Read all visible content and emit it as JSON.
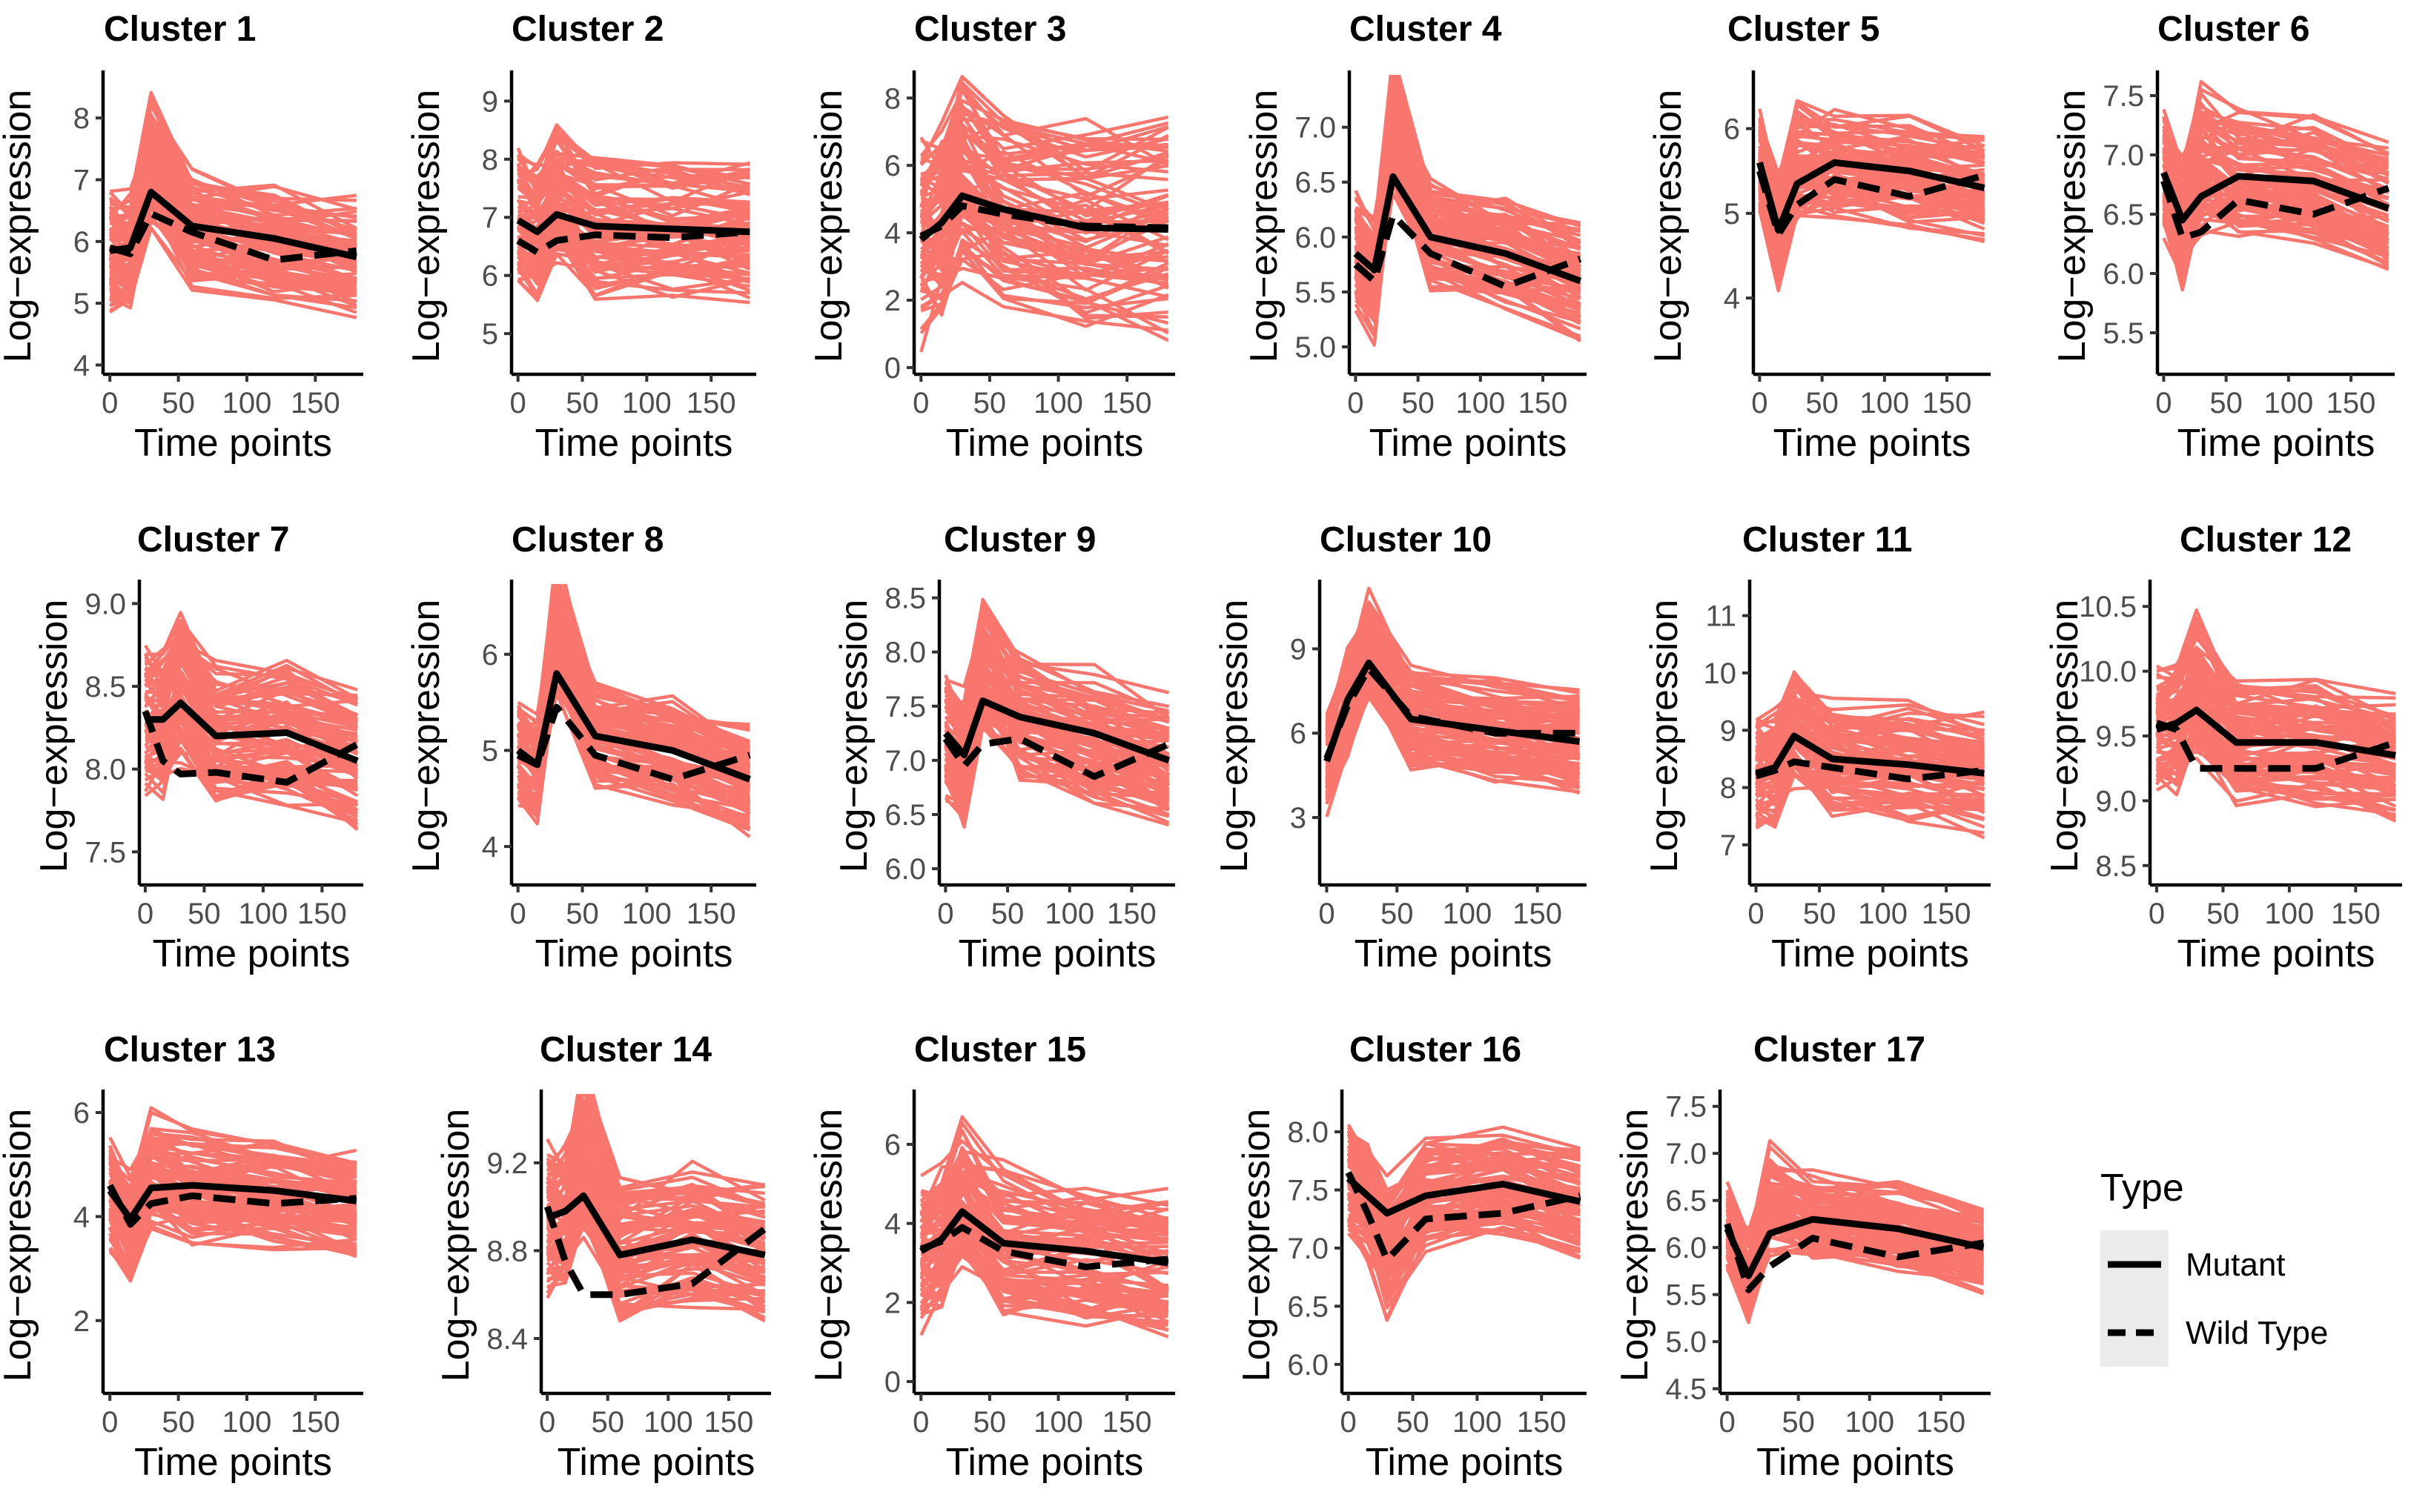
{
  "figure": {
    "legend": {
      "title": "Type",
      "items": [
        {
          "label": "Mutant",
          "style": "solid"
        },
        {
          "label": "Wild Type",
          "style": "dashed"
        }
      ]
    },
    "colors": {
      "gene_lines": "#F8766D",
      "mean_lines": "#000000",
      "legend_key_bg": "#EBEBEB"
    }
  },
  "chart_data": [
    {
      "type": "line",
      "title": "Cluster 1",
      "xlabel": "Time points",
      "ylabel": "Log−expression",
      "xlim": [
        -5,
        185
      ],
      "ylim": [
        3.85,
        8.65
      ],
      "xticks": [
        0,
        50,
        100,
        150
      ],
      "xtick_labels": [
        "0",
        "50",
        "100",
        "150"
      ],
      "yticks": [
        4,
        5,
        6,
        7,
        8
      ],
      "ytick_labels": [
        "4",
        "5",
        "6",
        "7",
        "8"
      ],
      "band": {
        "base_spread": 0.8,
        "peak": 0.9
      },
      "x": [
        0,
        15,
        30,
        60,
        120,
        180
      ],
      "series": [
        {
          "name": "Mutant",
          "values": [
            5.85,
            5.9,
            6.8,
            6.25,
            6.05,
            5.75
          ]
        },
        {
          "name": "Wild Type",
          "values": [
            5.9,
            5.8,
            6.45,
            6.15,
            5.7,
            5.85
          ]
        }
      ]
    },
    {
      "type": "line",
      "title": "Cluster 2",
      "xlabel": "Time points",
      "ylabel": "Log−expression",
      "xlim": [
        -5,
        185
      ],
      "ylim": [
        4.3,
        9.4
      ],
      "xticks": [
        0,
        50,
        100,
        150
      ],
      "xtick_labels": [
        "0",
        "50",
        "100",
        "150"
      ],
      "yticks": [
        5,
        6,
        7,
        8,
        9
      ],
      "ytick_labels": [
        "5",
        "6",
        "7",
        "8",
        "9"
      ],
      "band": {
        "base_spread": 1.0,
        "peak": 0.5
      },
      "x": [
        0,
        15,
        30,
        60,
        120,
        180
      ],
      "series": [
        {
          "name": "Mutant",
          "values": [
            6.95,
            6.75,
            7.05,
            6.85,
            6.8,
            6.75
          ]
        },
        {
          "name": "Wild Type",
          "values": [
            6.6,
            6.4,
            6.6,
            6.7,
            6.65,
            6.75
          ]
        }
      ]
    },
    {
      "type": "line",
      "title": "Cluster 3",
      "xlabel": "Time points",
      "ylabel": "Log−expression",
      "xlim": [
        -5,
        185
      ],
      "ylim": [
        -0.2,
        8.6
      ],
      "xticks": [
        0,
        50,
        100,
        150
      ],
      "xtick_labels": [
        "0",
        "50",
        "100",
        "150"
      ],
      "yticks": [
        0,
        2,
        4,
        6,
        8
      ],
      "ytick_labels": [
        "0",
        "2",
        "4",
        "6",
        "8"
      ],
      "band": {
        "base_spread": 2.6,
        "peak": 1.0
      },
      "x": [
        0,
        15,
        30,
        60,
        120,
        180
      ],
      "series": [
        {
          "name": "Mutant",
          "values": [
            3.8,
            4.3,
            5.1,
            4.7,
            4.15,
            4.1
          ]
        },
        {
          "name": "Wild Type",
          "values": [
            3.9,
            4.2,
            4.8,
            4.55,
            4.2,
            4.15
          ]
        }
      ]
    },
    {
      "type": "line",
      "title": "Cluster 4",
      "xlabel": "Time points",
      "ylabel": "Log−expression",
      "xlim": [
        -5,
        185
      ],
      "ylim": [
        4.75,
        7.45
      ],
      "xticks": [
        0,
        50,
        100,
        150
      ],
      "xtick_labels": [
        "0",
        "50",
        "100",
        "150"
      ],
      "yticks": [
        5.0,
        5.5,
        6.0,
        6.5,
        7.0
      ],
      "ytick_labels": [
        "5.0",
        "5.5",
        "6.0",
        "6.5",
        "7.0"
      ],
      "band": {
        "base_spread": 0.45,
        "peak": 0.7
      },
      "x": [
        0,
        15,
        30,
        60,
        120,
        180
      ],
      "series": [
        {
          "name": "Mutant",
          "values": [
            5.85,
            5.7,
            6.55,
            6.0,
            5.85,
            5.6
          ]
        },
        {
          "name": "Wild Type",
          "values": [
            5.75,
            5.6,
            6.2,
            5.85,
            5.55,
            5.8
          ]
        }
      ]
    },
    {
      "type": "line",
      "title": "Cluster 5",
      "xlabel": "Time points",
      "ylabel": "Log−expression",
      "xlim": [
        -5,
        185
      ],
      "ylim": [
        3.1,
        6.6
      ],
      "xticks": [
        0,
        50,
        100,
        150
      ],
      "xtick_labels": [
        "0",
        "50",
        "100",
        "150"
      ],
      "yticks": [
        4,
        5,
        6
      ],
      "ytick_labels": [
        "4",
        "5",
        "6"
      ],
      "band": {
        "base_spread": 0.55,
        "peak": 0.4
      },
      "x": [
        0,
        15,
        30,
        60,
        120,
        180
      ],
      "series": [
        {
          "name": "Mutant",
          "values": [
            5.6,
            4.8,
            5.35,
            5.6,
            5.5,
            5.3
          ]
        },
        {
          "name": "Wild Type",
          "values": [
            5.5,
            4.75,
            5.1,
            5.4,
            5.2,
            5.45
          ]
        }
      ]
    },
    {
      "type": "line",
      "title": "Cluster 6",
      "xlabel": "Time points",
      "ylabel": "Log−expression",
      "xlim": [
        -5,
        185
      ],
      "ylim": [
        5.15,
        7.65
      ],
      "xticks": [
        0,
        50,
        100,
        150
      ],
      "xtick_labels": [
        "0",
        "50",
        "100",
        "150"
      ],
      "yticks": [
        5.5,
        6.0,
        6.5,
        7.0,
        7.5
      ],
      "ytick_labels": [
        "5.5",
        "6.0",
        "6.5",
        "7.0",
        "7.5"
      ],
      "band": {
        "base_spread": 0.45,
        "peak": 0.5
      },
      "x": [
        0,
        15,
        30,
        60,
        120,
        180
      ],
      "series": [
        {
          "name": "Mutant",
          "values": [
            6.85,
            6.45,
            6.65,
            6.82,
            6.78,
            6.55
          ]
        },
        {
          "name": "Wild Type",
          "values": [
            6.78,
            6.3,
            6.35,
            6.62,
            6.5,
            6.72
          ]
        }
      ]
    },
    {
      "type": "line",
      "title": "Cluster 7",
      "xlabel": "Time points",
      "ylabel": "Log−expression",
      "xlim": [
        -5,
        185
      ],
      "ylim": [
        7.3,
        9.1
      ],
      "xticks": [
        0,
        50,
        100,
        150
      ],
      "xtick_labels": [
        "0",
        "50",
        "100",
        "150"
      ],
      "yticks": [
        7.5,
        8.0,
        8.5,
        9.0
      ],
      "ytick_labels": [
        "7.5",
        "8.0",
        "8.5",
        "9.0"
      ],
      "band": {
        "base_spread": 0.35,
        "peak": 0.2
      },
      "x": [
        0,
        15,
        30,
        60,
        120,
        180
      ],
      "series": [
        {
          "name": "Mutant",
          "values": [
            8.3,
            8.3,
            8.4,
            8.2,
            8.22,
            8.05
          ]
        },
        {
          "name": "Wild Type",
          "values": [
            8.35,
            8.05,
            7.97,
            7.98,
            7.92,
            8.15
          ]
        }
      ]
    },
    {
      "type": "line",
      "title": "Cluster 8",
      "xlabel": "Time points",
      "ylabel": "Log−expression",
      "xlim": [
        -5,
        185
      ],
      "ylim": [
        3.6,
        6.7
      ],
      "xticks": [
        0,
        50,
        100,
        150
      ],
      "xtick_labels": [
        "0",
        "50",
        "100",
        "150"
      ],
      "yticks": [
        4,
        5,
        6
      ],
      "ytick_labels": [
        "4",
        "5",
        "6"
      ],
      "band": {
        "base_spread": 0.45,
        "peak": 0.8
      },
      "x": [
        0,
        15,
        30,
        60,
        120,
        180
      ],
      "series": [
        {
          "name": "Mutant",
          "values": [
            4.95,
            4.85,
            5.8,
            5.15,
            5.0,
            4.7
          ]
        },
        {
          "name": "Wild Type",
          "values": [
            5.0,
            4.85,
            5.45,
            4.95,
            4.7,
            4.95
          ]
        }
      ]
    },
    {
      "type": "line",
      "title": "Cluster 9",
      "xlabel": "Time points",
      "ylabel": "Log−expression",
      "xlim": [
        -5,
        185
      ],
      "ylim": [
        5.85,
        8.6
      ],
      "xticks": [
        0,
        50,
        100,
        150
      ],
      "xtick_labels": [
        "0",
        "50",
        "100",
        "150"
      ],
      "yticks": [
        6.0,
        6.5,
        7.0,
        7.5,
        8.0,
        8.5
      ],
      "ytick_labels": [
        "6.0",
        "6.5",
        "7.0",
        "7.5",
        "8.0",
        "8.5"
      ],
      "band": {
        "base_spread": 0.5,
        "peak": 0.6
      },
      "x": [
        0,
        15,
        30,
        60,
        120,
        180
      ],
      "series": [
        {
          "name": "Mutant",
          "values": [
            7.25,
            7.05,
            7.55,
            7.4,
            7.25,
            7.0
          ]
        },
        {
          "name": "Wild Type",
          "values": [
            7.2,
            6.95,
            7.15,
            7.2,
            6.85,
            7.15
          ]
        }
      ]
    },
    {
      "type": "line",
      "title": "Cluster 10",
      "xlabel": "Time points",
      "ylabel": "Log−expression",
      "xlim": [
        -5,
        185
      ],
      "ylim": [
        0.6,
        11.2
      ],
      "xticks": [
        0,
        50,
        100,
        150
      ],
      "xtick_labels": [
        "0",
        "50",
        "100",
        "150"
      ],
      "yticks": [
        3,
        6,
        9
      ],
      "ytick_labels": [
        "3",
        "6",
        "9"
      ],
      "band": {
        "base_spread": 1.5,
        "peak": 0.8
      },
      "x": [
        0,
        15,
        30,
        60,
        120,
        180
      ],
      "series": [
        {
          "name": "Mutant",
          "values": [
            5.0,
            7.2,
            8.5,
            6.5,
            6.1,
            5.7
          ]
        },
        {
          "name": "Wild Type",
          "values": [
            5.1,
            7.0,
            8.3,
            6.6,
            6.0,
            6.0
          ]
        }
      ]
    },
    {
      "type": "line",
      "title": "Cluster 11",
      "xlabel": "Time points",
      "ylabel": "Log−expression",
      "xlim": [
        -5,
        185
      ],
      "ylim": [
        6.3,
        11.5
      ],
      "xticks": [
        0,
        50,
        100,
        150
      ],
      "xtick_labels": [
        "0",
        "50",
        "100",
        "150"
      ],
      "yticks": [
        7,
        8,
        9,
        10,
        11
      ],
      "ytick_labels": [
        "7",
        "8",
        "9",
        "10",
        "11"
      ],
      "band": {
        "base_spread": 0.9,
        "peak": 0.4
      },
      "x": [
        0,
        15,
        30,
        60,
        120,
        180
      ],
      "series": [
        {
          "name": "Mutant",
          "values": [
            8.25,
            8.35,
            8.9,
            8.5,
            8.4,
            8.25
          ]
        },
        {
          "name": "Wild Type",
          "values": [
            8.2,
            8.3,
            8.45,
            8.35,
            8.15,
            8.3
          ]
        }
      ]
    },
    {
      "type": "line",
      "title": "Cluster 12",
      "xlabel": "Time points",
      "ylabel": "Log−expression",
      "xlim": [
        -5,
        185
      ],
      "ylim": [
        8.35,
        10.65
      ],
      "xticks": [
        0,
        50,
        100,
        150
      ],
      "xtick_labels": [
        "0",
        "50",
        "100",
        "150"
      ],
      "yticks": [
        8.5,
        9.0,
        9.5,
        10.0,
        10.5
      ],
      "ytick_labels": [
        "8.5",
        "9.0",
        "9.5",
        "10.0",
        "10.5"
      ],
      "band": {
        "base_spread": 0.4,
        "peak": 0.3
      },
      "x": [
        0,
        15,
        30,
        60,
        120,
        180
      ],
      "series": [
        {
          "name": "Mutant",
          "values": [
            9.55,
            9.6,
            9.7,
            9.45,
            9.45,
            9.35
          ]
        },
        {
          "name": "Wild Type",
          "values": [
            9.6,
            9.55,
            9.25,
            9.25,
            9.25,
            9.45
          ]
        }
      ]
    },
    {
      "type": "line",
      "title": "Cluster 13",
      "xlabel": "Time points",
      "ylabel": "Log−expression",
      "xlim": [
        -5,
        185
      ],
      "ylim": [
        0.6,
        6.3
      ],
      "xticks": [
        0,
        50,
        100,
        150
      ],
      "xtick_labels": [
        "0",
        "50",
        "100",
        "150"
      ],
      "yticks": [
        2,
        4,
        6
      ],
      "ytick_labels": [
        "2",
        "4",
        "6"
      ],
      "band": {
        "base_spread": 0.9,
        "peak": 0.6
      },
      "x": [
        0,
        15,
        30,
        60,
        120,
        180
      ],
      "series": [
        {
          "name": "Mutant",
          "values": [
            4.5,
            3.95,
            4.55,
            4.6,
            4.5,
            4.3
          ]
        },
        {
          "name": "Wild Type",
          "values": [
            4.6,
            3.85,
            4.25,
            4.4,
            4.25,
            4.35
          ]
        }
      ]
    },
    {
      "type": "line",
      "title": "Cluster 14",
      "xlabel": "Time points",
      "ylabel": "Log−expression",
      "xlim": [
        -5,
        185
      ],
      "ylim": [
        8.15,
        9.5
      ],
      "xticks": [
        0,
        50,
        100,
        150
      ],
      "xtick_labels": [
        "0",
        "50",
        "100",
        "150"
      ],
      "yticks": [
        8.4,
        8.8,
        9.2
      ],
      "ytick_labels": [
        "8.4",
        "8.8",
        "9.2"
      ],
      "band": {
        "base_spread": 0.28,
        "peak": 0.3
      },
      "x": [
        0,
        15,
        30,
        60,
        120,
        180
      ],
      "series": [
        {
          "name": "Mutant",
          "values": [
            8.95,
            8.98,
            9.05,
            8.78,
            8.85,
            8.78
          ]
        },
        {
          "name": "Wild Type",
          "values": [
            9.0,
            8.75,
            8.6,
            8.6,
            8.65,
            8.9
          ]
        }
      ]
    },
    {
      "type": "line",
      "title": "Cluster 15",
      "xlabel": "Time points",
      "ylabel": "Log−expression",
      "xlim": [
        -5,
        185
      ],
      "ylim": [
        -0.3,
        7.2
      ],
      "xticks": [
        0,
        50,
        100,
        150
      ],
      "xtick_labels": [
        "0",
        "50",
        "100",
        "150"
      ],
      "yticks": [
        0,
        2,
        4,
        6
      ],
      "ytick_labels": [
        "0",
        "2",
        "4",
        "6"
      ],
      "band": {
        "base_spread": 1.6,
        "peak": 0.8
      },
      "x": [
        0,
        15,
        30,
        60,
        120,
        180
      ],
      "series": [
        {
          "name": "Mutant",
          "values": [
            3.3,
            3.6,
            4.3,
            3.5,
            3.3,
            3.0
          ]
        },
        {
          "name": "Wild Type",
          "values": [
            3.35,
            3.55,
            3.9,
            3.3,
            2.9,
            3.1
          ]
        }
      ]
    },
    {
      "type": "line",
      "title": "Cluster 16",
      "xlabel": "Time points",
      "ylabel": "Log−expression",
      "xlim": [
        -5,
        185
      ],
      "ylim": [
        5.75,
        8.3
      ],
      "xticks": [
        0,
        50,
        100,
        150
      ],
      "xtick_labels": [
        "0",
        "50",
        "100",
        "150"
      ],
      "yticks": [
        6.0,
        6.5,
        7.0,
        7.5,
        8.0
      ],
      "ytick_labels": [
        "6.0",
        "6.5",
        "7.0",
        "7.5",
        "8.0"
      ],
      "band": {
        "base_spread": 0.4,
        "peak": -0.6
      },
      "x": [
        0,
        15,
        30,
        60,
        120,
        180
      ],
      "series": [
        {
          "name": "Mutant",
          "values": [
            7.6,
            7.45,
            7.3,
            7.45,
            7.55,
            7.4
          ]
        },
        {
          "name": "Wild Type",
          "values": [
            7.65,
            7.3,
            6.9,
            7.25,
            7.3,
            7.45
          ]
        }
      ]
    },
    {
      "type": "line",
      "title": "Cluster 17",
      "xlabel": "Time points",
      "ylabel": "Log−expression",
      "xlim": [
        -5,
        185
      ],
      "ylim": [
        4.45,
        7.6
      ],
      "xticks": [
        0,
        50,
        100,
        150
      ],
      "xtick_labels": [
        "0",
        "50",
        "100",
        "150"
      ],
      "yticks": [
        4.5,
        5.0,
        5.5,
        6.0,
        6.5,
        7.0,
        7.5
      ],
      "ytick_labels": [
        "4.5",
        "5.0",
        "5.5",
        "6.0",
        "6.5",
        "7.0",
        "7.5"
      ],
      "band": {
        "base_spread": 0.4,
        "peak": 0.6
      },
      "x": [
        0,
        15,
        30,
        60,
        120,
        180
      ],
      "series": [
        {
          "name": "Mutant",
          "values": [
            6.2,
            5.7,
            6.15,
            6.3,
            6.2,
            6.0
          ]
        },
        {
          "name": "Wild Type",
          "values": [
            6.25,
            5.55,
            5.8,
            6.1,
            5.9,
            6.05
          ]
        }
      ]
    }
  ]
}
